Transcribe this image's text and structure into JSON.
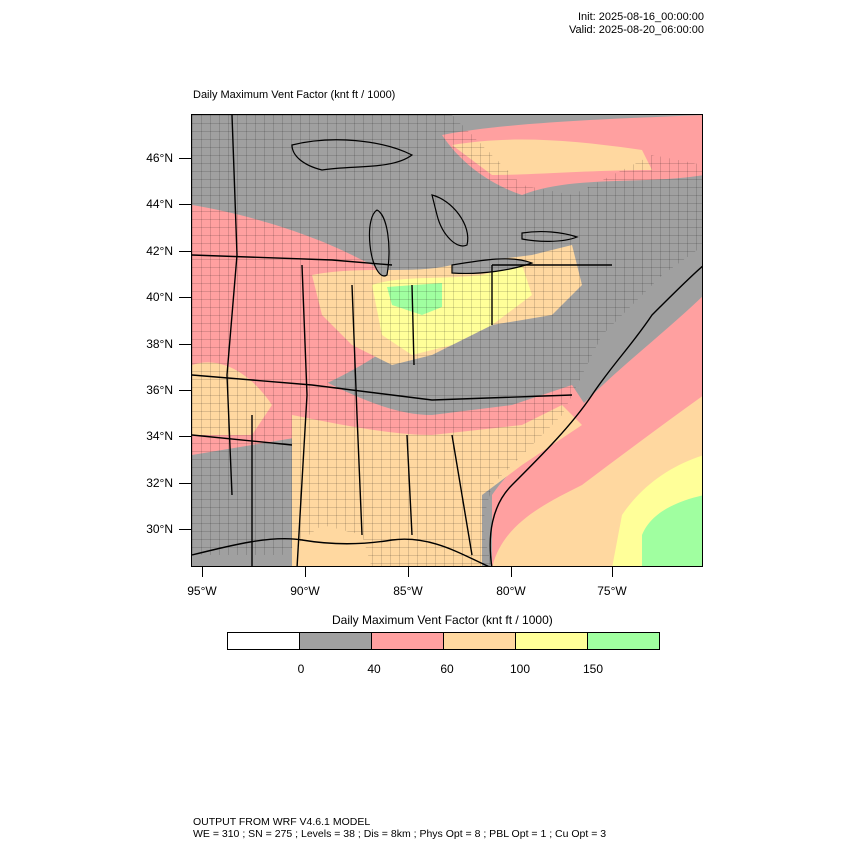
{
  "header": {
    "init": "Init: 2025-08-16_00:00:00",
    "valid": "Valid: 2025-08-20_06:00:00"
  },
  "map": {
    "title": "Daily Maximum Vent Factor   (knt ft / 1000)",
    "lat_labels": [
      "46°N",
      "44°N",
      "42°N",
      "40°N",
      "38°N",
      "36°N",
      "34°N",
      "32°N",
      "30°N"
    ],
    "lon_labels": [
      "95°W",
      "90°W",
      "85°W",
      "80°W",
      "75°W"
    ]
  },
  "colorbar": {
    "title": "Daily Maximum Vent Factor  (knt ft / 1000)",
    "colors": [
      "#ffffff",
      "#a0a0a0",
      "#ffa0a0",
      "#ffd8a0",
      "#ffff99",
      "#a0ffa0"
    ],
    "labels": [
      "0",
      "40",
      "60",
      "100",
      "150"
    ]
  },
  "footer": {
    "line1": "OUTPUT FROM WRF V4.6.1 MODEL",
    "line2": "WE = 310 ; SN = 275 ; Levels = 38 ; Dis = 8km ; Phys Opt = 8 ; PBL Opt = 1 ; Cu Opt = 3"
  }
}
